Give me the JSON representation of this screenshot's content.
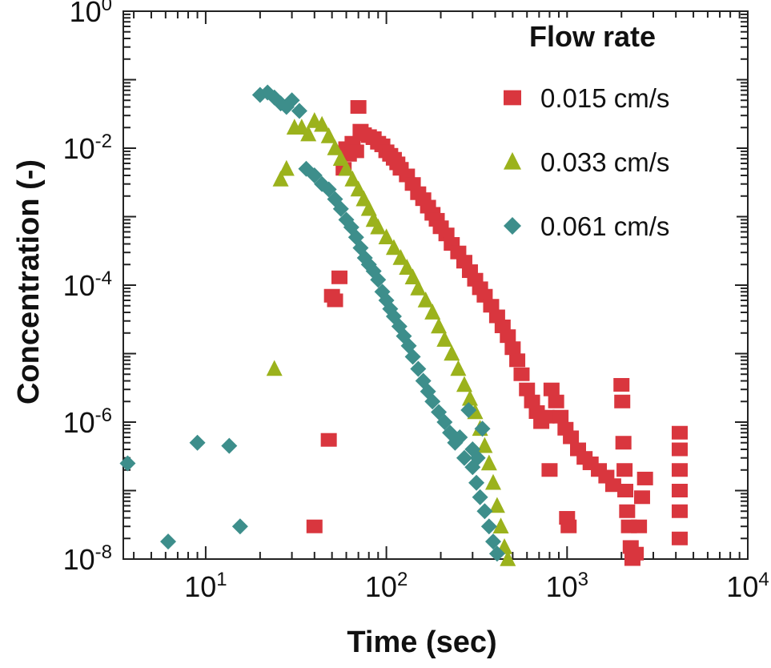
{
  "chart_data": {
    "type": "scatter",
    "title": "",
    "xlabel": "Time (sec)",
    "ylabel": "Concentration (-)",
    "x_scale": "log",
    "y_scale": "log",
    "xlim": [
      3.5,
      10000
    ],
    "ylim": [
      1e-08,
      1
    ],
    "x_ticks": [
      {
        "value": 10,
        "base": "10",
        "exp": "1"
      },
      {
        "value": 100,
        "base": "10",
        "exp": "2"
      },
      {
        "value": 1000,
        "base": "10",
        "exp": "3"
      },
      {
        "value": 10000,
        "base": "10",
        "exp": "4"
      }
    ],
    "y_ticks": [
      {
        "value": 1,
        "base": "10",
        "exp": "0"
      },
      {
        "value": 0.01,
        "base": "10",
        "exp": "-2"
      },
      {
        "value": 0.0001,
        "base": "10",
        "exp": "-4"
      },
      {
        "value": 1e-06,
        "base": "10",
        "exp": "-6"
      },
      {
        "value": 1e-08,
        "base": "10",
        "exp": "-8"
      }
    ],
    "grid": false,
    "legend": {
      "title": "Flow rate",
      "position": "top-right"
    },
    "series": [
      {
        "name": "0.015 cm/s",
        "marker": "square",
        "color": "#d9363e",
        "points": [
          [
            40,
            3e-08
          ],
          [
            48,
            5.5e-07
          ],
          [
            50,
            7e-05
          ],
          [
            52,
            6e-05
          ],
          [
            55,
            0.00013
          ],
          [
            58,
            0.005
          ],
          [
            60,
            0.01
          ],
          [
            62,
            0.008
          ],
          [
            65,
            0.012
          ],
          [
            68,
            0.009
          ],
          [
            70,
            0.04
          ],
          [
            72,
            0.018
          ],
          [
            75,
            0.016
          ],
          [
            80,
            0.015
          ],
          [
            85,
            0.014
          ],
          [
            90,
            0.012
          ],
          [
            95,
            0.011
          ],
          [
            100,
            0.009
          ],
          [
            105,
            0.008
          ],
          [
            110,
            0.007
          ],
          [
            115,
            0.006
          ],
          [
            120,
            0.005
          ],
          [
            130,
            0.004
          ],
          [
            140,
            0.003
          ],
          [
            150,
            0.0022
          ],
          [
            160,
            0.0018
          ],
          [
            170,
            0.0014
          ],
          [
            180,
            0.0011
          ],
          [
            190,
            0.0009
          ],
          [
            200,
            0.0007
          ],
          [
            215,
            0.00055
          ],
          [
            230,
            0.0004
          ],
          [
            250,
            0.0003
          ],
          [
            270,
            0.00022
          ],
          [
            290,
            0.00016
          ],
          [
            310,
            0.00012
          ],
          [
            330,
            9e-05
          ],
          [
            350,
            7e-05
          ],
          [
            380,
            5e-05
          ],
          [
            410,
            3.5e-05
          ],
          [
            440,
            2.5e-05
          ],
          [
            470,
            1.8e-05
          ],
          [
            500,
            1.2e-05
          ],
          [
            530,
            8e-06
          ],
          [
            560,
            5e-06
          ],
          [
            600,
            3e-06
          ],
          [
            640,
            2e-06
          ],
          [
            680,
            1.4e-06
          ],
          [
            720,
            1e-06
          ],
          [
            770,
            1.2e-06
          ],
          [
            820,
            3e-06
          ],
          [
            870,
            2e-06
          ],
          [
            920,
            1.2e-06
          ],
          [
            980,
            8e-07
          ],
          [
            1050,
            6e-07
          ],
          [
            1150,
            4e-07
          ],
          [
            1250,
            3e-07
          ],
          [
            1350,
            2.5e-07
          ],
          [
            1500,
            2e-07
          ],
          [
            1650,
            1.6e-07
          ],
          [
            1800,
            1.2e-07
          ],
          [
            800,
            2e-07
          ],
          [
            1000,
            4e-08
          ],
          [
            1020,
            3e-08
          ],
          [
            2000,
            3.5e-06
          ],
          [
            2020,
            2e-06
          ],
          [
            2050,
            5e-07
          ],
          [
            2080,
            2e-07
          ],
          [
            2100,
            1e-07
          ],
          [
            2150,
            5e-08
          ],
          [
            2200,
            3e-08
          ],
          [
            2250,
            1.5e-08
          ],
          [
            2300,
            1e-08
          ],
          [
            2400,
            1.2e-08
          ],
          [
            2500,
            3e-08
          ],
          [
            2600,
            8e-08
          ],
          [
            2700,
            1.5e-07
          ],
          [
            4200,
            7e-07
          ],
          [
            4200,
            4e-07
          ],
          [
            4200,
            2e-07
          ],
          [
            4200,
            1e-07
          ],
          [
            4200,
            5e-08
          ],
          [
            4200,
            2e-08
          ]
        ]
      },
      {
        "name": "0.033 cm/s",
        "marker": "triangle",
        "color": "#9bb21c",
        "points": [
          [
            24,
            6e-06
          ],
          [
            26,
            0.0035
          ],
          [
            28,
            0.005
          ],
          [
            31,
            0.02
          ],
          [
            34,
            0.02
          ],
          [
            37,
            0.016
          ],
          [
            40,
            0.025
          ],
          [
            44,
            0.022
          ],
          [
            48,
            0.015
          ],
          [
            52,
            0.01
          ],
          [
            56,
            0.007
          ],
          [
            60,
            0.005
          ],
          [
            65,
            0.0035
          ],
          [
            70,
            0.0025
          ],
          [
            75,
            0.0018
          ],
          [
            80,
            0.0013
          ],
          [
            85,
            0.0009
          ],
          [
            90,
            0.0007
          ],
          [
            100,
            0.0005
          ],
          [
            110,
            0.00035
          ],
          [
            120,
            0.00025
          ],
          [
            130,
            0.00018
          ],
          [
            140,
            0.00013
          ],
          [
            150,
            9e-05
          ],
          [
            165,
            6e-05
          ],
          [
            180,
            4e-05
          ],
          [
            195,
            2.5e-05
          ],
          [
            210,
            1.6e-05
          ],
          [
            230,
            1e-05
          ],
          [
            250,
            6e-06
          ],
          [
            270,
            3.5e-06
          ],
          [
            290,
            2.2e-06
          ],
          [
            310,
            1.4e-06
          ],
          [
            330,
            8e-07
          ],
          [
            350,
            4.5e-07
          ],
          [
            370,
            2.5e-07
          ],
          [
            390,
            1.3e-07
          ],
          [
            410,
            6e-08
          ],
          [
            430,
            3e-08
          ],
          [
            450,
            1.5e-08
          ],
          [
            470,
            1e-08
          ]
        ]
      },
      {
        "name": "0.061 cm/s",
        "marker": "diamond",
        "color": "#3d8e8b",
        "points": [
          [
            3.7,
            2.5e-07
          ],
          [
            6.2,
            1.8e-08
          ],
          [
            9,
            5e-07
          ],
          [
            13.5,
            4.5e-07
          ],
          [
            15.5,
            3e-08
          ],
          [
            20,
            0.06
          ],
          [
            22,
            0.065
          ],
          [
            24,
            0.055
          ],
          [
            26,
            0.045
          ],
          [
            28,
            0.04
          ],
          [
            30,
            0.05
          ],
          [
            33,
            0.035
          ],
          [
            36,
            0.005
          ],
          [
            40,
            0.004
          ],
          [
            44,
            0.003
          ],
          [
            48,
            0.0025
          ],
          [
            52,
            0.0018
          ],
          [
            56,
            0.0013
          ],
          [
            60,
            0.0009
          ],
          [
            64,
            0.0007
          ],
          [
            68,
            0.0005
          ],
          [
            72,
            0.00035
          ],
          [
            76,
            0.00025
          ],
          [
            80,
            0.0002
          ],
          [
            85,
            0.00016
          ],
          [
            90,
            0.00012
          ],
          [
            95,
            8e-05
          ],
          [
            100,
            6e-05
          ],
          [
            105,
            4.5e-05
          ],
          [
            110,
            3.5e-05
          ],
          [
            118,
            2.5e-05
          ],
          [
            125,
            1.8e-05
          ],
          [
            133,
            1.3e-05
          ],
          [
            140,
            9e-06
          ],
          [
            150,
            6e-06
          ],
          [
            160,
            4e-06
          ],
          [
            170,
            2.8e-06
          ],
          [
            180,
            2e-06
          ],
          [
            195,
            1.4e-06
          ],
          [
            210,
            1e-06
          ],
          [
            225,
            7e-07
          ],
          [
            240,
            5e-07
          ],
          [
            255,
            6e-07
          ],
          [
            270,
            3e-07
          ],
          [
            285,
            1.5e-06
          ],
          [
            300,
            2.2e-07
          ],
          [
            315,
            1.3e-07
          ],
          [
            330,
            8e-08
          ],
          [
            350,
            5e-08
          ],
          [
            370,
            3e-08
          ],
          [
            390,
            1.8e-08
          ],
          [
            410,
            1.2e-08
          ],
          [
            300,
            4e-07
          ],
          [
            320,
            3e-07
          ],
          [
            340,
            8e-07
          ]
        ]
      }
    ]
  }
}
